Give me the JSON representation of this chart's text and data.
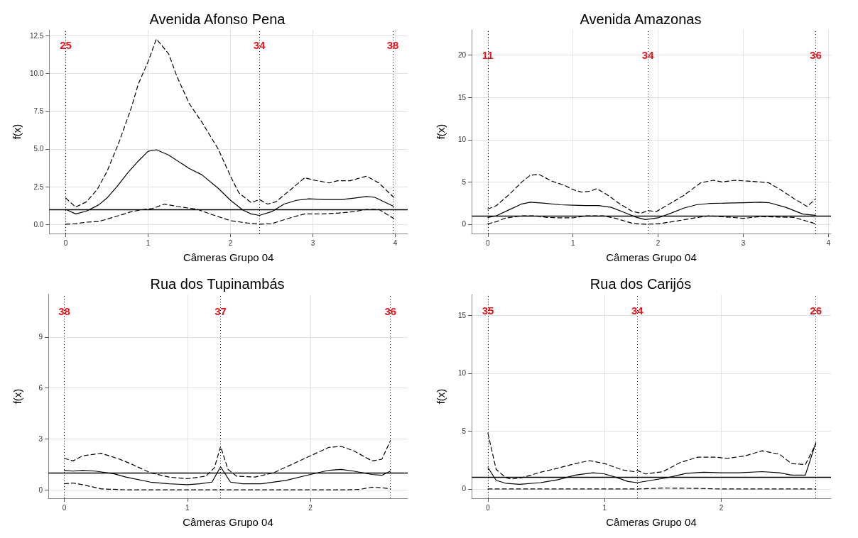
{
  "chart_data": [
    {
      "type": "line",
      "title": "Avenida Afonso Pena",
      "xlabel": "Câmeras Grupo 04",
      "ylabel": "f(x)",
      "xlim": [
        -0.2,
        4.15
      ],
      "ylim": [
        -0.6,
        12.9
      ],
      "xticks": [
        0,
        1,
        2,
        3,
        4
      ],
      "yticks": [
        {
          "value": 0,
          "label": "0.0"
        },
        {
          "value": 2.5,
          "label": "2.5"
        },
        {
          "value": 5,
          "label": "5.0"
        },
        {
          "value": 7.5,
          "label": "7.5"
        },
        {
          "value": 10,
          "label": "10.0"
        },
        {
          "value": 12.5,
          "label": "12.5"
        }
      ],
      "grid": true,
      "marker": "none",
      "series": [
        {
          "color": "#000000",
          "line_style": "solid",
          "x": [
            0,
            0.12,
            0.25,
            0.4,
            0.5,
            0.62,
            0.75,
            0.88,
            1.0,
            1.1,
            1.25,
            1.5,
            1.65,
            1.85,
            2.0,
            2.15,
            2.25,
            2.35,
            2.5,
            2.65,
            2.8,
            2.95,
            3.15,
            3.35,
            3.5,
            3.65,
            3.75,
            3.98
          ],
          "values": [
            1.0,
            0.7,
            0.88,
            1.3,
            1.75,
            2.5,
            3.4,
            4.2,
            4.85,
            4.95,
            4.6,
            3.7,
            3.3,
            2.4,
            1.6,
            0.95,
            0.7,
            0.6,
            0.85,
            1.35,
            1.6,
            1.7,
            1.65,
            1.65,
            1.75,
            1.85,
            1.8,
            1.2
          ]
        },
        {
          "color": "#000000",
          "line_style": "dashed",
          "x": [
            0,
            0.12,
            0.25,
            0.38,
            0.5,
            0.65,
            0.8,
            0.88,
            1.0,
            1.1,
            1.25,
            1.35,
            1.5,
            1.65,
            1.85,
            2.0,
            2.1,
            2.25,
            2.35,
            2.45,
            2.55,
            2.75,
            2.9,
            3.0,
            3.2,
            3.3,
            3.45,
            3.65,
            3.8,
            3.98
          ],
          "values": [
            1.75,
            1.15,
            1.5,
            2.3,
            3.5,
            5.5,
            7.8,
            9.3,
            10.8,
            12.3,
            11.3,
            9.8,
            8.0,
            6.8,
            5.0,
            3.2,
            2.1,
            1.45,
            1.65,
            1.35,
            1.5,
            2.4,
            3.1,
            2.95,
            2.75,
            2.9,
            2.9,
            3.2,
            2.75,
            1.8
          ]
        },
        {
          "color": "#000000",
          "line_style": "dashed",
          "x": [
            0,
            0.12,
            0.25,
            0.4,
            0.5,
            0.65,
            0.8,
            0.95,
            1.05,
            1.2,
            1.35,
            1.6,
            1.75,
            2.0,
            2.2,
            2.35,
            2.5,
            2.7,
            2.9,
            3.1,
            3.3,
            3.5,
            3.65,
            3.8,
            3.98
          ],
          "values": [
            0.02,
            0.05,
            0.15,
            0.2,
            0.35,
            0.6,
            0.85,
            1.0,
            1.05,
            1.35,
            1.2,
            1.0,
            0.7,
            0.25,
            0.1,
            0.02,
            0.05,
            0.4,
            0.7,
            0.7,
            0.75,
            0.85,
            1.0,
            1.0,
            0.4
          ]
        }
      ],
      "ref_lines": [
        {
          "axis": "y",
          "value": 1,
          "color": "#000000",
          "line_style": "solid"
        },
        {
          "axis": "x",
          "value": 0,
          "color": "#000000",
          "line_style": "dotted"
        },
        {
          "axis": "x",
          "value": 2.35,
          "color": "#000000",
          "line_style": "dotted"
        },
        {
          "axis": "x",
          "value": 3.97,
          "color": "#000000",
          "line_style": "dotted"
        }
      ],
      "annotations": [
        {
          "text": "25",
          "x": 0,
          "y": 11.9
        },
        {
          "text": "34",
          "x": 2.35,
          "y": 11.9
        },
        {
          "text": "38",
          "x": 3.97,
          "y": 11.9
        }
      ]
    },
    {
      "type": "line",
      "title": "Avenida Amazonas",
      "xlabel": "Câmeras Grupo 04",
      "ylabel": "f(x)",
      "xlim": [
        -0.19,
        4.03
      ],
      "ylim": [
        -1.1,
        23
      ],
      "xticks": [
        0,
        1,
        2,
        3,
        4
      ],
      "yticks": [
        0,
        5,
        10,
        15,
        20
      ],
      "grid": true,
      "marker": "none",
      "series": [
        {
          "color": "#000000",
          "line_style": "solid",
          "x": [
            0,
            0.1,
            0.25,
            0.4,
            0.5,
            0.65,
            0.85,
            1.0,
            1.15,
            1.3,
            1.45,
            1.6,
            1.75,
            1.85,
            2.0,
            2.15,
            2.3,
            2.45,
            2.6,
            2.8,
            3.0,
            3.2,
            3.3,
            3.5,
            3.7,
            3.85
          ],
          "values": [
            0.8,
            1.0,
            1.7,
            2.4,
            2.6,
            2.5,
            2.3,
            2.25,
            2.2,
            2.2,
            2.0,
            1.4,
            0.8,
            0.55,
            0.75,
            1.3,
            1.9,
            2.3,
            2.45,
            2.5,
            2.55,
            2.6,
            2.55,
            2.0,
            1.2,
            1.05
          ]
        },
        {
          "color": "#000000",
          "line_style": "dashed",
          "x": [
            0,
            0.1,
            0.25,
            0.4,
            0.5,
            0.6,
            0.75,
            0.9,
            1.0,
            1.1,
            1.2,
            1.28,
            1.4,
            1.55,
            1.7,
            1.8,
            1.88,
            1.98,
            2.1,
            2.3,
            2.5,
            2.65,
            2.75,
            2.9,
            3.05,
            3.2,
            3.3,
            3.45,
            3.6,
            3.75,
            3.85
          ],
          "values": [
            1.8,
            2.2,
            3.5,
            5.0,
            5.8,
            5.9,
            5.1,
            4.6,
            4.1,
            3.8,
            3.9,
            4.2,
            3.5,
            2.4,
            1.5,
            1.3,
            1.6,
            1.5,
            2.2,
            3.4,
            4.9,
            5.2,
            5.0,
            5.2,
            5.1,
            5.0,
            4.9,
            4.0,
            3.0,
            2.1,
            3.0
          ]
        },
        {
          "color": "#000000",
          "line_style": "dashed",
          "x": [
            0,
            0.1,
            0.2,
            0.4,
            0.55,
            0.7,
            0.85,
            1.0,
            1.15,
            1.35,
            1.5,
            1.7,
            1.85,
            2.0,
            2.2,
            2.4,
            2.6,
            2.8,
            3.0,
            3.2,
            3.4,
            3.6,
            3.75,
            3.85
          ],
          "values": [
            0.05,
            0.3,
            0.7,
            1.0,
            1.0,
            0.8,
            0.75,
            0.75,
            1.0,
            1.0,
            0.7,
            0.1,
            0.0,
            0.05,
            0.35,
            0.7,
            1.0,
            0.85,
            0.7,
            0.9,
            0.85,
            0.8,
            0.35,
            0.05
          ]
        }
      ],
      "ref_lines": [
        {
          "axis": "y",
          "value": 1,
          "color": "#000000",
          "line_style": "solid"
        },
        {
          "axis": "x",
          "value": 0,
          "color": "#000000",
          "line_style": "dotted"
        },
        {
          "axis": "x",
          "value": 1.88,
          "color": "#000000",
          "line_style": "dotted"
        },
        {
          "axis": "x",
          "value": 3.85,
          "color": "#000000",
          "line_style": "dotted"
        }
      ],
      "annotations": [
        {
          "text": "11",
          "x": 0,
          "y": 20
        },
        {
          "text": "34",
          "x": 1.88,
          "y": 20
        },
        {
          "text": "36",
          "x": 3.85,
          "y": 20
        }
      ]
    },
    {
      "type": "line",
      "title": "Rua dos Tupinambás",
      "xlabel": "Câmeras Grupo 04",
      "ylabel": "f(x)",
      "xlim": [
        -0.13,
        2.79
      ],
      "ylim": [
        -0.5,
        11.5
      ],
      "xticks": [
        0,
        1,
        2
      ],
      "yticks": [
        0,
        3,
        6,
        9
      ],
      "grid": true,
      "marker": "none",
      "series": [
        {
          "color": "#000000",
          "line_style": "solid",
          "x": [
            0,
            0.07,
            0.15,
            0.25,
            0.4,
            0.5,
            0.7,
            0.85,
            1.0,
            1.1,
            1.2,
            1.27,
            1.35,
            1.45,
            1.6,
            1.8,
            2.0,
            2.15,
            2.25,
            2.35,
            2.5,
            2.58,
            2.65
          ],
          "values": [
            1.15,
            1.1,
            1.15,
            1.1,
            0.95,
            0.75,
            0.45,
            0.35,
            0.3,
            0.35,
            0.45,
            1.35,
            0.45,
            0.35,
            0.35,
            0.55,
            0.9,
            1.15,
            1.2,
            1.1,
            0.9,
            0.85,
            1.1
          ]
        },
        {
          "color": "#000000",
          "line_style": "dashed",
          "x": [
            0,
            0.07,
            0.15,
            0.3,
            0.45,
            0.55,
            0.7,
            0.85,
            1.0,
            1.15,
            1.22,
            1.27,
            1.33,
            1.4,
            1.55,
            1.7,
            1.85,
            2.0,
            2.15,
            2.25,
            2.35,
            2.5,
            2.58,
            2.65
          ],
          "values": [
            1.85,
            1.7,
            2.0,
            2.15,
            1.8,
            1.5,
            1.0,
            0.75,
            0.65,
            0.8,
            1.3,
            2.55,
            1.2,
            0.8,
            0.75,
            1.0,
            1.5,
            2.0,
            2.5,
            2.55,
            2.3,
            1.7,
            1.8,
            2.9
          ]
        },
        {
          "color": "#000000",
          "line_style": "dashed",
          "x": [
            0,
            0.07,
            0.15,
            0.3,
            0.5,
            1.0,
            1.5,
            2.0,
            2.3,
            2.4,
            2.5,
            2.58,
            2.65
          ],
          "values": [
            0.35,
            0.4,
            0.3,
            0.05,
            0.0,
            0.0,
            0.0,
            0.0,
            0.0,
            0.02,
            0.15,
            0.12,
            0.05
          ]
        }
      ],
      "ref_lines": [
        {
          "axis": "y",
          "value": 1,
          "color": "#000000",
          "line_style": "solid"
        },
        {
          "axis": "x",
          "value": 0,
          "color": "#000000",
          "line_style": "dotted"
        },
        {
          "axis": "x",
          "value": 1.27,
          "color": "#000000",
          "line_style": "dotted"
        },
        {
          "axis": "x",
          "value": 2.65,
          "color": "#000000",
          "line_style": "dotted"
        }
      ],
      "annotations": [
        {
          "text": "38",
          "x": 0,
          "y": 10.5
        },
        {
          "text": "37",
          "x": 1.27,
          "y": 10.5
        },
        {
          "text": "36",
          "x": 2.65,
          "y": 10.5
        }
      ]
    },
    {
      "type": "line",
      "title": "Rua dos Carijós",
      "xlabel": "Câmeras Grupo 04",
      "ylabel": "f(x)",
      "xlim": [
        -0.14,
        2.94
      ],
      "ylim": [
        -0.8,
        16.8
      ],
      "xticks": [
        0,
        1,
        2
      ],
      "yticks": [
        0,
        5,
        10,
        15
      ],
      "grid": true,
      "marker": "none",
      "series": [
        {
          "color": "#000000",
          "line_style": "solid",
          "x": [
            0,
            0.07,
            0.15,
            0.27,
            0.45,
            0.6,
            0.75,
            0.9,
            1.0,
            1.1,
            1.2,
            1.28,
            1.4,
            1.55,
            1.7,
            1.85,
            2.0,
            2.15,
            2.35,
            2.5,
            2.6,
            2.72,
            2.81
          ],
          "values": [
            1.85,
            0.75,
            0.5,
            0.4,
            0.55,
            0.8,
            1.2,
            1.4,
            1.3,
            1.0,
            0.65,
            0.55,
            0.75,
            1.0,
            1.35,
            1.45,
            1.4,
            1.4,
            1.5,
            1.4,
            1.2,
            1.2,
            4.0
          ]
        },
        {
          "color": "#000000",
          "line_style": "dashed",
          "x": [
            0,
            0.07,
            0.15,
            0.2,
            0.3,
            0.45,
            0.6,
            0.75,
            0.87,
            1.0,
            1.15,
            1.25,
            1.28,
            1.35,
            1.5,
            1.65,
            1.8,
            1.95,
            2.05,
            2.2,
            2.35,
            2.5,
            2.6,
            2.72,
            2.81
          ],
          "values": [
            4.8,
            1.7,
            1.0,
            0.85,
            1.0,
            1.45,
            1.8,
            2.2,
            2.45,
            2.2,
            1.65,
            1.5,
            1.6,
            1.3,
            1.5,
            2.3,
            2.75,
            2.75,
            2.65,
            2.85,
            3.3,
            3.0,
            2.2,
            2.1,
            3.9
          ]
        },
        {
          "color": "#000000",
          "line_style": "dashed",
          "x": [
            0,
            0.5,
            1.0,
            1.28,
            1.5,
            1.8,
            2.0,
            2.5,
            2.81
          ],
          "values": [
            0.0,
            0.0,
            0.0,
            0.0,
            0.08,
            0.05,
            0.0,
            0.0,
            0.0
          ]
        }
      ],
      "ref_lines": [
        {
          "axis": "y",
          "value": 1,
          "color": "#000000",
          "line_style": "solid"
        },
        {
          "axis": "x",
          "value": 0,
          "color": "#000000",
          "line_style": "dotted"
        },
        {
          "axis": "x",
          "value": 1.28,
          "color": "#000000",
          "line_style": "dotted"
        },
        {
          "axis": "x",
          "value": 2.81,
          "color": "#000000",
          "line_style": "dotted"
        }
      ],
      "annotations": [
        {
          "text": "35",
          "x": 0,
          "y": 15.4
        },
        {
          "text": "34",
          "x": 1.28,
          "y": 15.4
        },
        {
          "text": "26",
          "x": 2.81,
          "y": 15.4
        }
      ]
    }
  ]
}
